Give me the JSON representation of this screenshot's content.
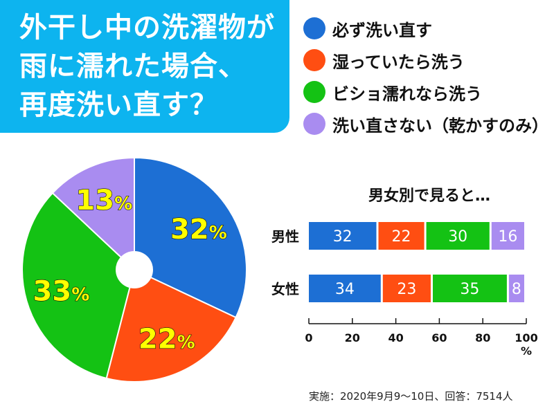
{
  "colors": {
    "title_bg": "#0db4ef",
    "blue": "#1d6fd4",
    "orange": "#ff4e12",
    "green": "#14c214",
    "purple": "#a98cf0",
    "pct_yellow": "#ffff00"
  },
  "title": {
    "line1": "外干し中の洗濯物が",
    "line2": "雨に濡れた場合、",
    "line3": "再度洗い直す？"
  },
  "legend": [
    {
      "label": "必ず洗い直す",
      "color": "#1d6fd4"
    },
    {
      "label": "湿っていたら洗う",
      "color": "#ff4e12"
    },
    {
      "label": "ビショ濡れなら洗う",
      "color": "#14c214"
    },
    {
      "label": "洗い直さない（乾かすのみ）",
      "color": "#a98cf0"
    }
  ],
  "chart_data": [
    {
      "type": "pie",
      "title": "外干し中の洗濯物が雨に濡れた場合、再度洗い直す？",
      "labels": [
        "必ず洗い直す",
        "湿っていたら洗う",
        "ビショ濡れなら洗う",
        "洗い直さない（乾かすのみ）"
      ],
      "values": [
        32,
        22,
        33,
        13
      ],
      "display_values": [
        "32",
        "22",
        "33",
        "13"
      ],
      "unit": "%",
      "colors": [
        "#1d6fd4",
        "#ff4e12",
        "#14c214",
        "#a98cf0"
      ],
      "donut_hole": true
    },
    {
      "type": "bar",
      "orientation": "horizontal",
      "stacked": true,
      "title": "男女別で見ると…",
      "categories": [
        "男性",
        "女性"
      ],
      "series": [
        {
          "name": "必ず洗い直す",
          "values": [
            32,
            34
          ],
          "color": "#1d6fd4"
        },
        {
          "name": "湿っていたら洗う",
          "values": [
            22,
            23
          ],
          "color": "#ff4e12"
        },
        {
          "name": "ビショ濡れなら洗う",
          "values": [
            30,
            35
          ],
          "color": "#14c214"
        },
        {
          "name": "洗い直さない（乾かすのみ）",
          "values": [
            16,
            8
          ],
          "color": "#a98cf0"
        }
      ],
      "xlim": [
        0,
        100
      ],
      "xticks": [
        0,
        20,
        40,
        60,
        80,
        100
      ],
      "tick_labels": [
        "0",
        "20",
        "40",
        "60",
        "80",
        "100"
      ],
      "xlabel": "%"
    }
  ],
  "footnote": "実施：2020年9月9～10日、回答：7514人"
}
